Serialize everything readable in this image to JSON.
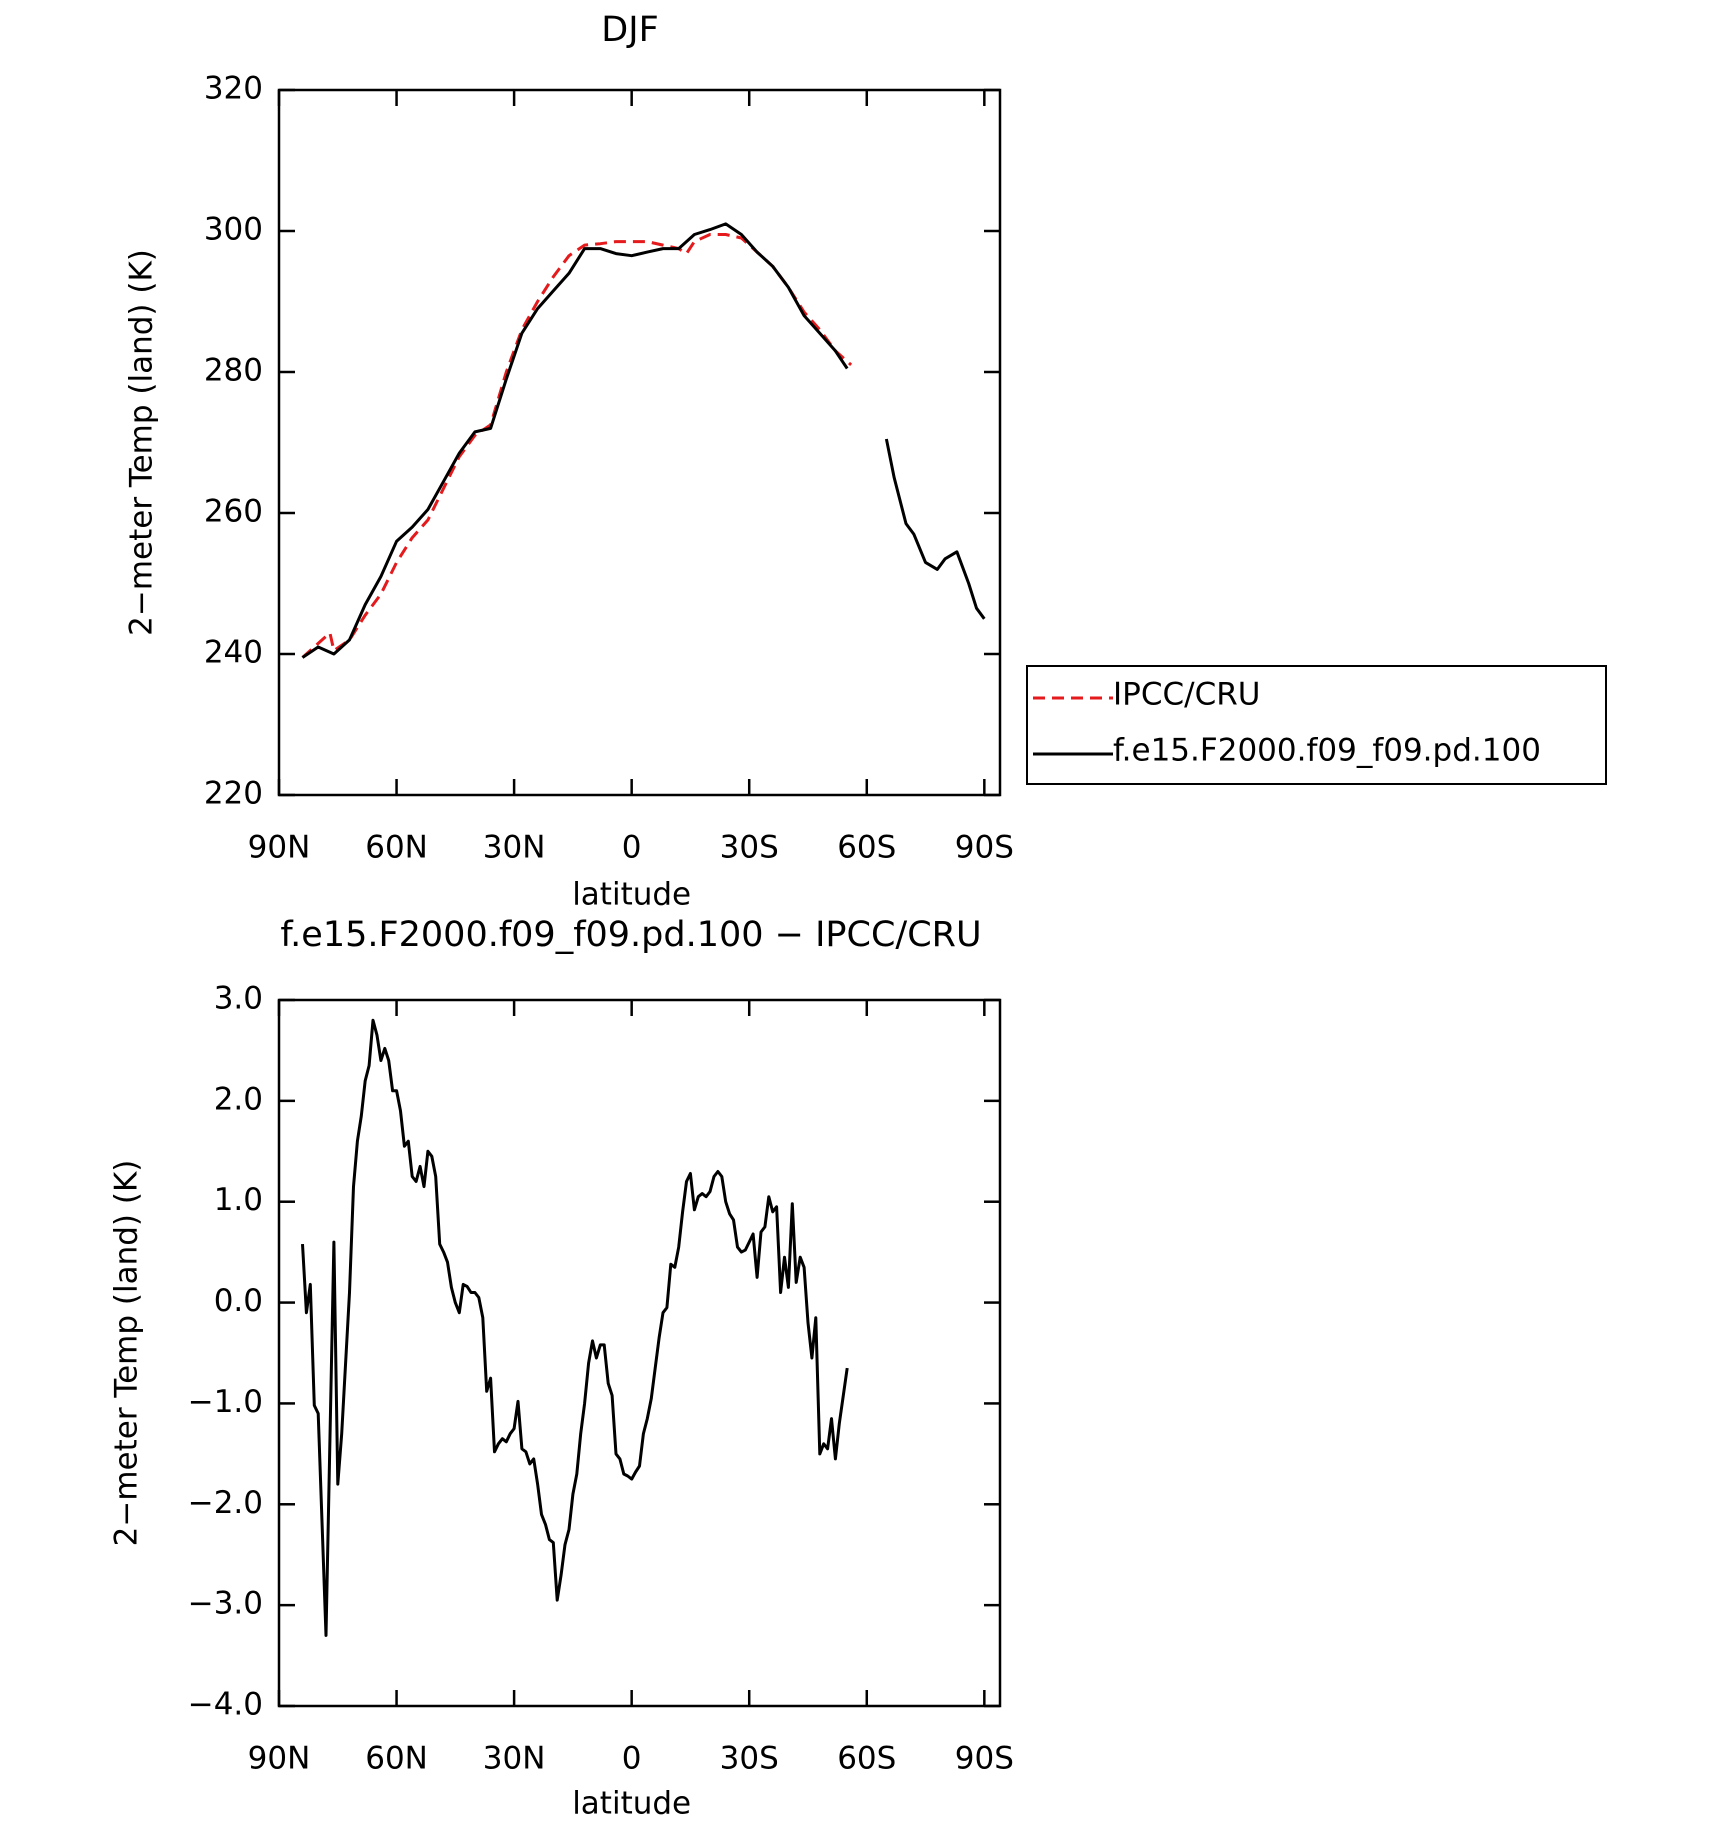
{
  "chart_data": [
    {
      "type": "line",
      "title": "DJF",
      "xlabel": "latitude",
      "ylabel": "2−meter Temp (land) (K)",
      "xlim": [
        90,
        -94
      ],
      "ylim": [
        220,
        320
      ],
      "xticks": [
        {
          "value": 90,
          "label": "90N"
        },
        {
          "value": 60,
          "label": "60N"
        },
        {
          "value": 30,
          "label": "30N"
        },
        0,
        {
          "value": -30,
          "label": "30S"
        },
        {
          "value": -60,
          "label": "60S"
        },
        {
          "value": -90,
          "label": "90S"
        }
      ],
      "yticks": [
        220,
        240,
        260,
        280,
        300,
        320
      ],
      "legend": "right",
      "series": [
        {
          "name": "IPCC/CRU",
          "color": "#e41a1c",
          "dashed": true,
          "x": [
            84,
            80,
            77,
            76,
            72,
            68,
            64,
            60,
            56,
            52,
            48,
            44,
            40,
            36,
            32,
            28,
            24,
            20,
            16,
            12,
            8,
            4,
            0,
            -4,
            -8,
            -12,
            -14,
            -16,
            -20,
            -24,
            -28,
            -32,
            -36,
            -40,
            -44,
            -48,
            -52,
            -56
          ],
          "values": [
            239.5,
            241.5,
            243,
            240.5,
            242,
            245.5,
            248.5,
            253,
            256.5,
            259,
            263.5,
            268,
            271,
            272.5,
            280,
            286,
            290,
            293.5,
            296.5,
            298,
            298.2,
            298.5,
            298.5,
            298.5,
            298,
            297.5,
            296.8,
            298.5,
            299.5,
            299.5,
            299,
            297,
            295,
            292,
            288.5,
            286,
            283,
            281
          ]
        },
        {
          "name": "f.e15.F2000.f09_f09.pd.100",
          "color": "#000000",
          "dashed": false,
          "x": [
            84,
            80,
            76,
            72,
            68,
            64,
            60,
            56,
            52,
            48,
            44,
            40,
            36,
            32,
            28,
            24,
            20,
            16,
            12,
            8,
            4,
            0,
            -4,
            -8,
            -12,
            -16,
            -20,
            -24,
            -28,
            -32,
            -36,
            -40,
            -44,
            -48,
            -52,
            -55,
            -60,
            -65,
            -67,
            -70,
            -72,
            -75,
            -78,
            -80,
            -83,
            -86,
            -88,
            -90
          ],
          "values": [
            239.5,
            241,
            240,
            242,
            247,
            251,
            256,
            258,
            260.5,
            264.5,
            268.5,
            271.5,
            272,
            279,
            285.5,
            289,
            291.5,
            294,
            297.5,
            297.5,
            296.8,
            296.5,
            297,
            297.5,
            297.5,
            299.5,
            300.2,
            301,
            299.5,
            297,
            295,
            292,
            288,
            285.5,
            283,
            280.5,
            null,
            270.5,
            265,
            258.5,
            257,
            253,
            252,
            253.5,
            254.5,
            250,
            246.5,
            245
          ]
        }
      ]
    },
    {
      "type": "line",
      "title": "f.e15.F2000.f09_f09.pd.100 − IPCC/CRU",
      "xlabel": "latitude",
      "ylabel": "2−meter Temp (land) (K)",
      "xlim": [
        90,
        -94
      ],
      "ylim": [
        -4,
        3
      ],
      "xticks": [
        {
          "value": 90,
          "label": "90N"
        },
        {
          "value": 60,
          "label": "60N"
        },
        {
          "value": 30,
          "label": "30N"
        },
        0,
        {
          "value": -30,
          "label": "30S"
        },
        {
          "value": -60,
          "label": "60S"
        },
        {
          "value": -90,
          "label": "90S"
        }
      ],
      "yticks": [
        {
          "value": -4,
          "label": "−4.0"
        },
        {
          "value": -3,
          "label": "−3.0"
        },
        {
          "value": -2,
          "label": "−2.0"
        },
        {
          "value": -1,
          "label": "−1.0"
        },
        {
          "value": 0,
          "label": "0.0"
        },
        {
          "value": 1,
          "label": "1.0"
        },
        {
          "value": 2,
          "label": "2.0"
        },
        {
          "value": 3,
          "label": "3.0"
        }
      ],
      "color": "#000000",
      "x": [
        84,
        83,
        82,
        81,
        80,
        78,
        76,
        75,
        74,
        72,
        71,
        70,
        69,
        68,
        67,
        66,
        65,
        64,
        63,
        62,
        61,
        60,
        59,
        58,
        57,
        56,
        55,
        54,
        53,
        52,
        51,
        50,
        49,
        48,
        47,
        46,
        45,
        44,
        43,
        42,
        41,
        40,
        39,
        38,
        37,
        36,
        35,
        34,
        33,
        32,
        31,
        30,
        29,
        28,
        27,
        26,
        25,
        24,
        23,
        22,
        21,
        20,
        19,
        18,
        17,
        16,
        15,
        14,
        13,
        12,
        11,
        10,
        9,
        8,
        7,
        6,
        5,
        4,
        3,
        2,
        1,
        0,
        -1,
        -2,
        -3,
        -4,
        -5,
        -6,
        -7,
        -8,
        -9,
        -10,
        -11,
        -12,
        -13,
        -14,
        -15,
        -16,
        -17,
        -18,
        -19,
        -20,
        -21,
        -22,
        -23,
        -24,
        -25,
        -26,
        -27,
        -28,
        -29,
        -30,
        -31,
        -32,
        -33,
        -34,
        -35,
        -36,
        -37,
        -38,
        -39,
        -40,
        -41,
        -42,
        -43,
        -44,
        -45,
        -46,
        -47,
        -48,
        -49,
        -50,
        -51,
        -52,
        -53,
        -55
      ],
      "values": [
        0.58,
        -0.1,
        0.18,
        -1.02,
        -1.1,
        -3.3,
        0.6,
        -1.8,
        -1.3,
        0.1,
        1.15,
        1.6,
        1.85,
        2.2,
        2.35,
        2.8,
        2.65,
        2.4,
        2.52,
        2.4,
        2.1,
        2.1,
        1.9,
        1.55,
        1.6,
        1.25,
        1.2,
        1.35,
        1.15,
        1.5,
        1.45,
        1.25,
        0.58,
        0.5,
        0.4,
        0.15,
        0.0,
        -0.1,
        0.18,
        0.16,
        0.1,
        0.1,
        0.05,
        -0.15,
        -0.88,
        -0.75,
        -1.48,
        -1.4,
        -1.35,
        -1.38,
        -1.3,
        -1.25,
        -0.98,
        -1.45,
        -1.48,
        -1.6,
        -1.55,
        -1.8,
        -2.1,
        -2.2,
        -2.35,
        -2.38,
        -2.95,
        -2.7,
        -2.4,
        -2.25,
        -1.9,
        -1.7,
        -1.3,
        -1.0,
        -0.6,
        -0.38,
        -0.55,
        -0.42,
        -0.42,
        -0.8,
        -0.92,
        -1.5,
        -1.55,
        -1.7,
        -1.72,
        -1.75,
        -1.68,
        -1.62,
        -1.3,
        -1.15,
        -0.95,
        -0.65,
        -0.35,
        -0.1,
        -0.05,
        0.38,
        0.35,
        0.55,
        0.9,
        1.2,
        1.28,
        0.92,
        1.05,
        1.08,
        1.05,
        1.1,
        1.25,
        1.3,
        1.25,
        1.0,
        0.88,
        0.82,
        0.55,
        0.5,
        0.52,
        0.6,
        0.68,
        0.25,
        0.7,
        0.75,
        1.05,
        0.9,
        0.95,
        0.1,
        0.45,
        0.15,
        0.98,
        0.2,
        0.45,
        0.35,
        -0.2,
        -0.55,
        -0.15,
        -1.5,
        -1.4,
        -1.45,
        -1.15,
        -1.55,
        -1.2,
        -0.65
      ]
    }
  ]
}
